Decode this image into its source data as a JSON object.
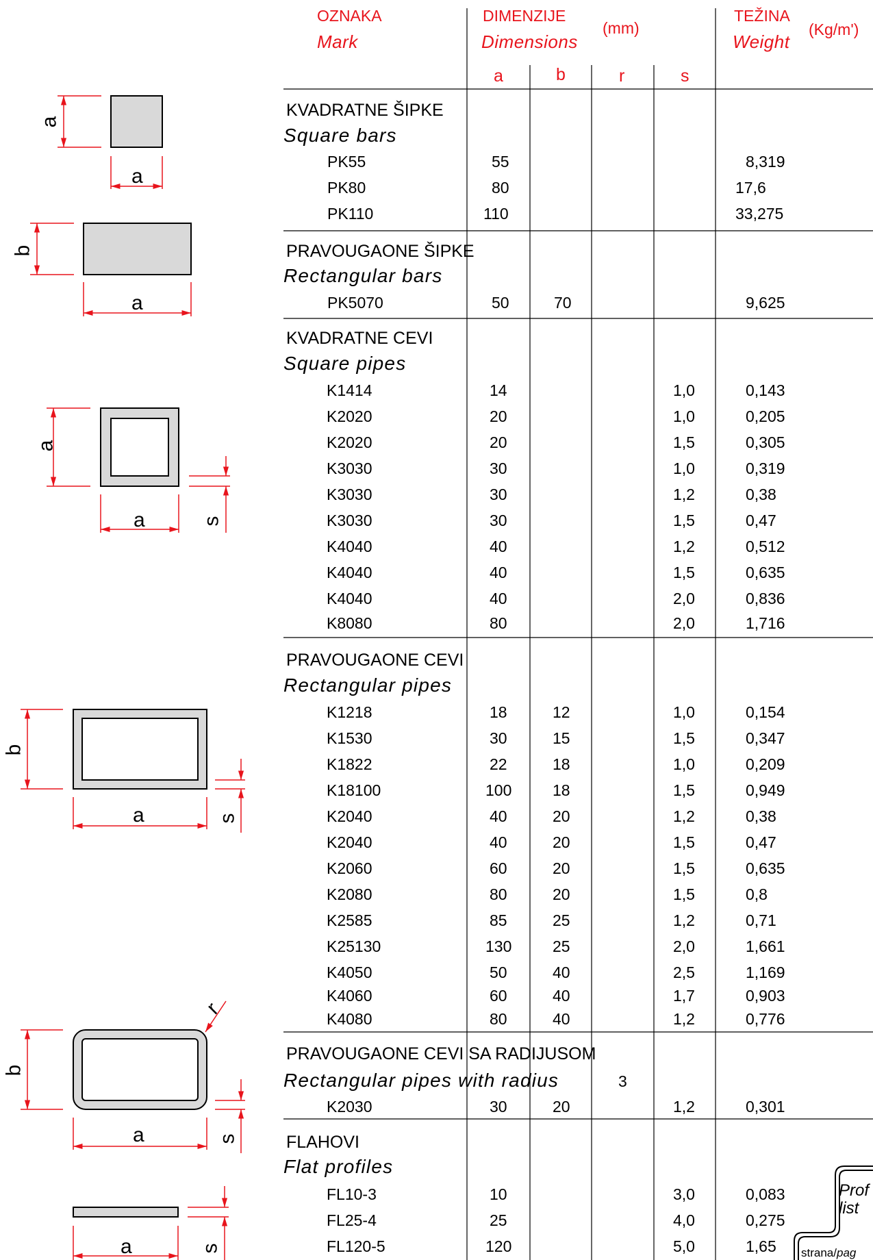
{
  "header": {
    "mark_label": "OZNAKA",
    "mark_label_en": "Mark",
    "dim_label": "DIMENZIJE",
    "dim_label_en": "Dimensions",
    "dim_unit": "(mm)",
    "weight_label": "TEŽINA",
    "weight_label_en": "Weight",
    "weight_unit": "(Kg/m')",
    "col_a": "a",
    "col_b": "b",
    "col_r": "r",
    "col_s": "s"
  },
  "sections": [
    {
      "title": "KVADRATNE ŠIPKE",
      "title_en": "Square bars",
      "rows": [
        {
          "mark": "PK55",
          "a": "55",
          "b": "",
          "s": "",
          "w": "8,319"
        },
        {
          "mark": "PK80",
          "a": "80",
          "b": "",
          "s": "",
          "w": "17,6"
        },
        {
          "mark": "PK110",
          "a": "110",
          "b": "",
          "s": "",
          "w": "33,275"
        }
      ]
    },
    {
      "title": "PRAVOUGAONE ŠIPKE",
      "title_en": "Rectangular bars",
      "rows": [
        {
          "mark": "PK5070",
          "a": "50",
          "b": "70",
          "s": "",
          "w": "9,625"
        }
      ]
    },
    {
      "title": "KVADRATNE  CEVI",
      "title_en": "Square pipes",
      "rows": [
        {
          "mark": "K1414",
          "a": "14",
          "b": "",
          "s": "1,0",
          "w": "0,143"
        },
        {
          "mark": "K2020",
          "a": "20",
          "b": "",
          "s": "1,0",
          "w": "0,205"
        },
        {
          "mark": "K2020",
          "a": "20",
          "b": "",
          "s": "1,5",
          "w": "0,305"
        },
        {
          "mark": "K3030",
          "a": "30",
          "b": "",
          "s": "1,0",
          "w": "0,319"
        },
        {
          "mark": "K3030",
          "a": "30",
          "b": "",
          "s": "1,2",
          "w": "0,38"
        },
        {
          "mark": "K3030",
          "a": "30",
          "b": "",
          "s": "1,5",
          "w": "0,47"
        },
        {
          "mark": "K4040",
          "a": "40",
          "b": "",
          "s": "1,2",
          "w": "0,512"
        },
        {
          "mark": "K4040",
          "a": "40",
          "b": "",
          "s": "1,5",
          "w": "0,635"
        },
        {
          "mark": "K4040",
          "a": "40",
          "b": "",
          "s": "2,0",
          "w": "0,836"
        },
        {
          "mark": "K8080",
          "a": "80",
          "b": "",
          "s": "2,0",
          "w": "1,716"
        }
      ]
    },
    {
      "title": "PRAVOUGAONE  CEVI",
      "title_en": "Rectangular pipes",
      "rows": [
        {
          "mark": "K1218",
          "a": "18",
          "b": "12",
          "s": "1,0",
          "w": "0,154"
        },
        {
          "mark": "K1530",
          "a": "30",
          "b": "15",
          "s": "1,5",
          "w": "0,347"
        },
        {
          "mark": "K1822",
          "a": "22",
          "b": "18",
          "s": "1,0",
          "w": "0,209"
        },
        {
          "mark": "K18100",
          "a": "100",
          "b": "18",
          "s": "1,5",
          "w": "0,949"
        },
        {
          "mark": "K2040",
          "a": "40",
          "b": "20",
          "s": "1,2",
          "w": "0,38"
        },
        {
          "mark": "K2040",
          "a": "40",
          "b": "20",
          "s": "1,5",
          "w": "0,47"
        },
        {
          "mark": "K2060",
          "a": "60",
          "b": "20",
          "s": "1,5",
          "w": "0,635"
        },
        {
          "mark": "K2080",
          "a": "80",
          "b": "20",
          "s": "1,5",
          "w": "0,8"
        },
        {
          "mark": "K2585",
          "a": "85",
          "b": "25",
          "s": "1,2",
          "w": "0,71"
        },
        {
          "mark": "K25130",
          "a": "130",
          "b": "25",
          "s": "2,0",
          "w": "1,661"
        },
        {
          "mark": "K4050",
          "a": "50",
          "b": "40",
          "s": "2,5",
          "w": "1,169"
        },
        {
          "mark": "K4060",
          "a": "60",
          "b": "40",
          "s": "1,7",
          "w": "0,903"
        },
        {
          "mark": "K4080",
          "a": "80",
          "b": "40",
          "s": "1,2",
          "w": "0,776"
        }
      ]
    },
    {
      "title": "PRAVOUGAONE  CEVI SA RADIJUSOM",
      "title_en": "Rectangular pipes  with  radius",
      "r_value": "3",
      "rows": [
        {
          "mark": "K2030",
          "a": "30",
          "b": "20",
          "s": "1,2",
          "w": "0,301"
        }
      ]
    },
    {
      "title": "FLAHOVI",
      "title_en": "Flat profiles",
      "rows": [
        {
          "mark": "FL10-3",
          "a": "10",
          "b": "",
          "s": "3,0",
          "w": "0,083"
        },
        {
          "mark": "FL25-4",
          "a": "25",
          "b": "",
          "s": "4,0",
          "w": "0,275"
        },
        {
          "mark": "FL120-5",
          "a": "120",
          "b": "",
          "s": "5,0",
          "w": "1,65"
        }
      ]
    }
  ],
  "diagram_labels": {
    "a": "a",
    "b": "b",
    "s": "s",
    "r": "r"
  },
  "corner": {
    "title_line1": "Prof",
    "title_line2": "list",
    "page_label_normal": "strana/",
    "page_label_italic": "pag"
  },
  "colors": {
    "dimension_red": "#e8141c",
    "profile_fill": "#d9d9d9",
    "grid": "#000000"
  }
}
